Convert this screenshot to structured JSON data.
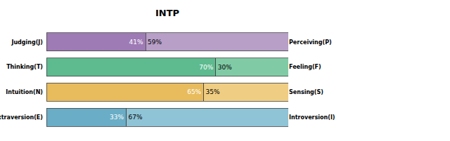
{
  "chart_data": {
    "type": "bar",
    "title": "INTP",
    "orientation": "horizontal",
    "stacked": true,
    "data_labels": true,
    "tick_labels": "y",
    "categories": [
      "Judging(J)",
      "Thinking(T)",
      "Intuition(N)",
      "Extraversion(E)"
    ],
    "right_categories": [
      "Perceiving(P)",
      "Feeling(F)",
      "Sensing(S)",
      "Introversion(I)"
    ],
    "xlim": [
      0,
      100
    ],
    "xticks": [],
    "series": [
      {
        "values": [
          41,
          70,
          65,
          33
        ],
        "value_labels": [
          "41%",
          "70%",
          "65%",
          "33%"
        ],
        "colors": [
          "#9e7bb5",
          "#5dbb8f",
          "#e8bb5c",
          "#6aadc6"
        ]
      },
      {
        "values": [
          59,
          30,
          35,
          67
        ],
        "value_labels": [
          "59%",
          "30%",
          "35%",
          "67%"
        ],
        "colors": [
          "#b79fc8",
          "#80cba6",
          "#efcd82",
          "#8fc3d6"
        ]
      }
    ]
  }
}
